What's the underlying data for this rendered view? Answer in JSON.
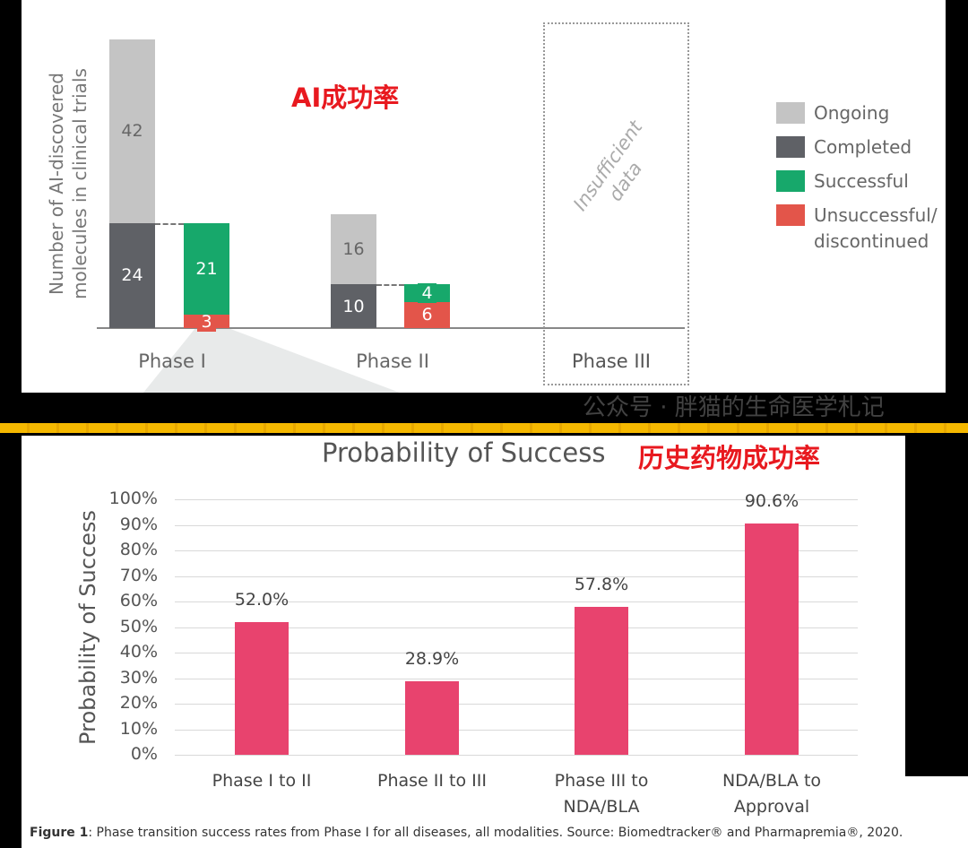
{
  "chart_data": [
    {
      "type": "bar",
      "subtype": "stacked-waterfall",
      "annotation": "AI成功率",
      "ylabel": "Number of AI-discovered molecules in clinical trials",
      "categories": [
        "Phase I",
        "Phase II",
        "Phase III"
      ],
      "legend": [
        {
          "name": "Ongoing",
          "color": "#c4c4c4"
        },
        {
          "name": "Completed",
          "color": "#5f6166"
        },
        {
          "name": "Successful",
          "color": "#17a86b"
        },
        {
          "name": "Unsuccessful/ discontinued",
          "line1": "Unsuccessful/",
          "line2": "discontinued",
          "color": "#e3554a"
        }
      ],
      "bars": [
        {
          "category": "Phase I",
          "completed": 24,
          "ongoing": 42,
          "successful": 21,
          "unsuccessful": 3
        },
        {
          "category": "Phase II",
          "completed": 10,
          "ongoing": 16,
          "successful": 4,
          "unsuccessful": 6
        }
      ],
      "phase3_note": "Insufficient data",
      "legend_position": "right"
    },
    {
      "type": "bar",
      "title": "Probability of Success",
      "annotation": "历史药物成功率",
      "ylabel": "Probability of Success",
      "ylim": [
        0,
        100
      ],
      "yticks": [
        "0%",
        "10%",
        "20%",
        "30%",
        "40%",
        "50%",
        "60%",
        "70%",
        "80%",
        "90%",
        "100%"
      ],
      "categories": [
        [
          "Phase I to II"
        ],
        [
          "Phase II to III"
        ],
        [
          "Phase III to",
          "NDA/BLA"
        ],
        [
          "NDA/BLA to",
          "Approval"
        ]
      ],
      "values": [
        52.0,
        28.9,
        57.8,
        90.6
      ],
      "data_labels": [
        "52.0%",
        "28.9%",
        "57.8%",
        "90.6%"
      ],
      "color": "#e8436e"
    }
  ],
  "caption": {
    "bold": "Figure 1",
    "text": ": Phase transition success rates from Phase I for all diseases, all modalities. Source: Biomedtracker® and Pharmapremia®, 2020."
  },
  "watermark": "公众号 · 胖猫的生命医学札记"
}
